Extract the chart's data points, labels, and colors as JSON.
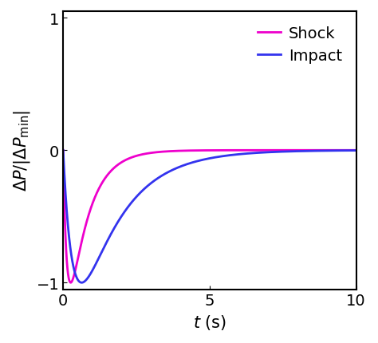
{
  "xlim": [
    0,
    10
  ],
  "ylim": [
    -1.05,
    1.05
  ],
  "xticks": [
    0,
    5,
    10
  ],
  "yticks": [
    -1,
    0,
    1
  ],
  "shock_color": "#EE00CC",
  "impact_color": "#3333EE",
  "shock_label": "Shock",
  "impact_label": "Impact",
  "shock_a": 8.0,
  "shock_b": 1.5,
  "impact_a": 3.0,
  "impact_b": 0.7,
  "linewidth": 2.0,
  "legend_fontsize": 14,
  "tick_fontsize": 14,
  "label_fontsize": 15
}
